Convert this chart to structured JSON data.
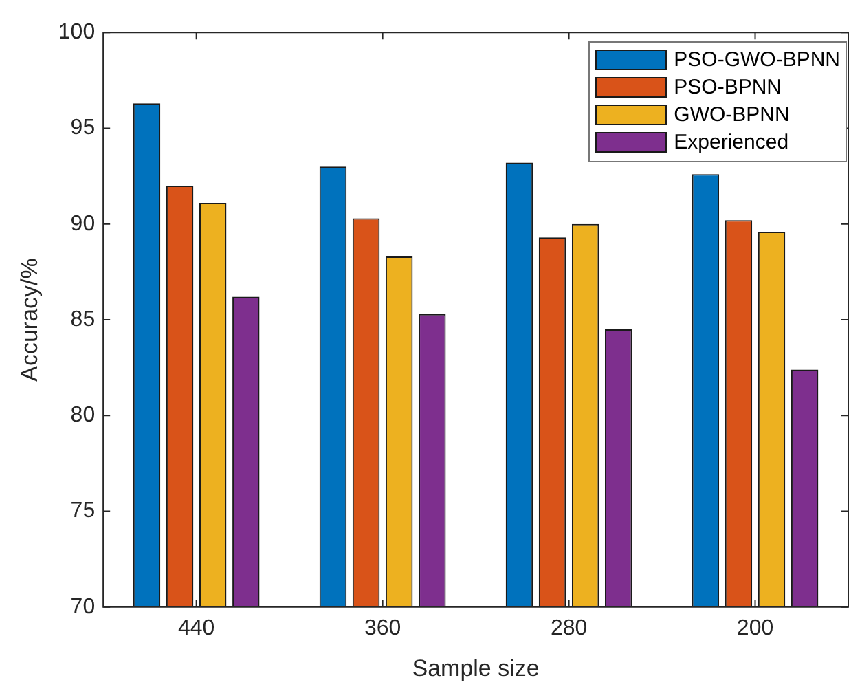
{
  "chart_data": {
    "type": "bar",
    "xlabel": "Sample size",
    "ylabel": "Accuracy/%",
    "categories": [
      "440",
      "360",
      "280",
      "200"
    ],
    "series": [
      {
        "name": "PSO-GWO-BPNN",
        "color": "#0072bd",
        "values": [
          96.3,
          93.0,
          93.2,
          92.6
        ]
      },
      {
        "name": "PSO-BPNN",
        "color": "#d95319",
        "values": [
          92.0,
          90.3,
          89.3,
          90.2
        ]
      },
      {
        "name": "GWO-BPNN",
        "color": "#edb120",
        "values": [
          91.1,
          88.3,
          90.0,
          89.6
        ]
      },
      {
        "name": "Experienced",
        "color": "#7e2f8e",
        "values": [
          86.2,
          85.3,
          84.5,
          82.4
        ]
      }
    ],
    "ylim": [
      70,
      100
    ],
    "yticks": [
      70,
      75,
      80,
      85,
      90,
      95,
      100
    ],
    "grid": false,
    "legend": "top right"
  }
}
